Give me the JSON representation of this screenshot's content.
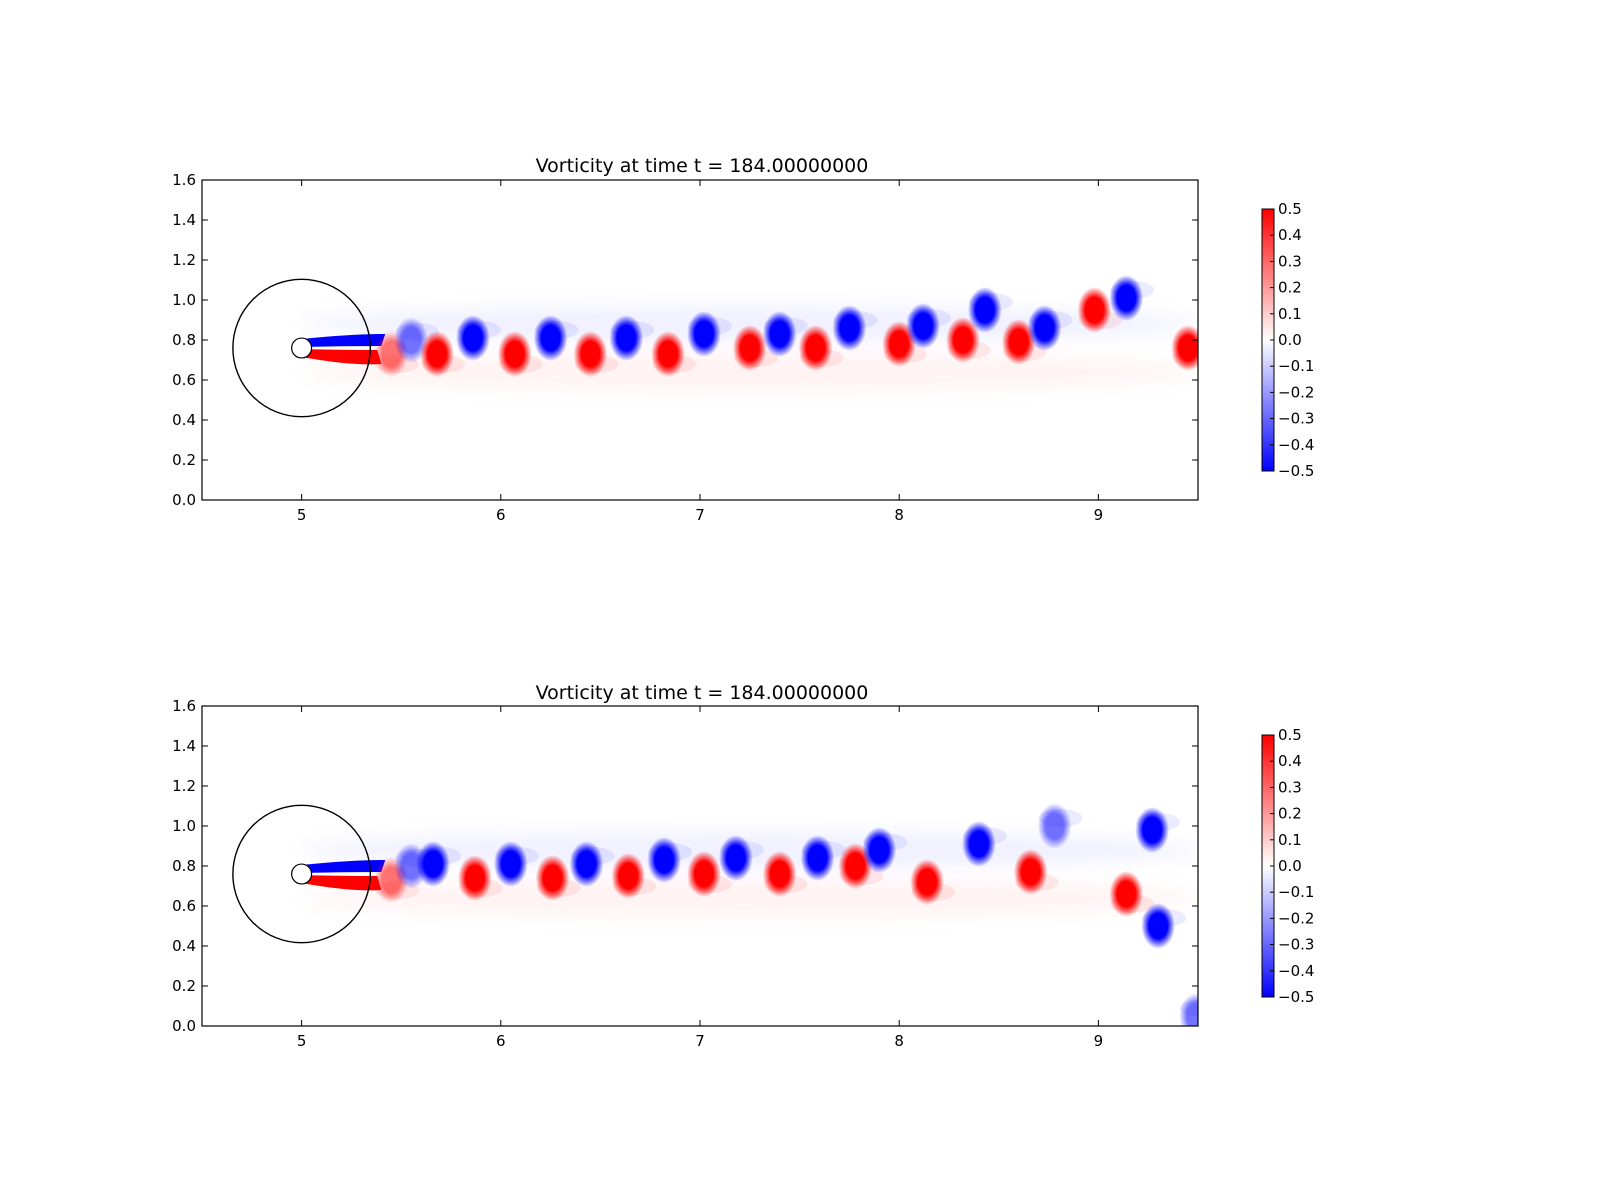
{
  "chart_data": [
    {
      "type": "heatmap",
      "title": "Vorticity at time t =   184.00000000",
      "xlim": [
        4.5,
        9.5
      ],
      "ylim": [
        0.0,
        1.6
      ],
      "xticks": [
        "5",
        "6",
        "7",
        "8",
        "9"
      ],
      "yticks": [
        "0.0",
        "0.2",
        "0.4",
        "0.6",
        "0.8",
        "1.0",
        "1.2",
        "1.4",
        "1.6"
      ],
      "colorbar": {
        "min": -0.5,
        "max": 0.5,
        "ticks": [
          "0.5",
          "0.4",
          "0.3",
          "0.2",
          "0.1",
          "0.0",
          "−0.1",
          "−0.2",
          "−0.3",
          "−0.4",
          "−0.5"
        ],
        "low_color": "#0000ff",
        "mid_color": "#ffffff",
        "high_color": "#ff0000"
      },
      "cylinder": {
        "cx": 5.0,
        "cy": 0.76,
        "r": 0.05
      },
      "domain_circle": {
        "cx": 5.0,
        "cy": 0.76,
        "r": 0.345
      },
      "vortices": [
        {
          "x": 5.45,
          "y": 0.73,
          "w": 0.3
        },
        {
          "x": 5.55,
          "y": 0.8,
          "w": -0.3
        },
        {
          "x": 5.68,
          "y": 0.73,
          "w": 0.5
        },
        {
          "x": 5.86,
          "y": 0.81,
          "w": -0.5
        },
        {
          "x": 6.07,
          "y": 0.73,
          "w": 0.5
        },
        {
          "x": 6.25,
          "y": 0.81,
          "w": -0.5
        },
        {
          "x": 6.45,
          "y": 0.73,
          "w": 0.5
        },
        {
          "x": 6.63,
          "y": 0.81,
          "w": -0.5
        },
        {
          "x": 6.84,
          "y": 0.73,
          "w": 0.5
        },
        {
          "x": 7.02,
          "y": 0.83,
          "w": -0.5
        },
        {
          "x": 7.25,
          "y": 0.76,
          "w": 0.5
        },
        {
          "x": 7.4,
          "y": 0.83,
          "w": -0.5
        },
        {
          "x": 7.58,
          "y": 0.76,
          "w": 0.5
        },
        {
          "x": 7.75,
          "y": 0.86,
          "w": -0.5
        },
        {
          "x": 8.0,
          "y": 0.78,
          "w": 0.5
        },
        {
          "x": 8.12,
          "y": 0.87,
          "w": -0.5
        },
        {
          "x": 8.32,
          "y": 0.8,
          "w": 0.5
        },
        {
          "x": 8.43,
          "y": 0.95,
          "w": -0.5
        },
        {
          "x": 8.6,
          "y": 0.79,
          "w": 0.5
        },
        {
          "x": 8.73,
          "y": 0.86,
          "w": -0.5
        },
        {
          "x": 8.98,
          "y": 0.95,
          "w": 0.5
        },
        {
          "x": 9.14,
          "y": 1.01,
          "w": -0.5
        },
        {
          "x": 9.45,
          "y": 0.76,
          "w": 0.5
        }
      ]
    },
    {
      "type": "heatmap",
      "title": "Vorticity at time t =   184.00000000",
      "xlim": [
        4.5,
        9.5
      ],
      "ylim": [
        0.0,
        1.6
      ],
      "xticks": [
        "5",
        "6",
        "7",
        "8",
        "9"
      ],
      "yticks": [
        "0.0",
        "0.2",
        "0.4",
        "0.6",
        "0.8",
        "1.0",
        "1.2",
        "1.4",
        "1.6"
      ],
      "colorbar": {
        "min": -0.5,
        "max": 0.5,
        "ticks": [
          "0.5",
          "0.4",
          "0.3",
          "0.2",
          "0.1",
          "0.0",
          "−0.1",
          "−0.2",
          "−0.3",
          "−0.4",
          "−0.5"
        ],
        "low_color": "#0000ff",
        "mid_color": "#ffffff",
        "high_color": "#ff0000"
      },
      "cylinder": {
        "cx": 5.0,
        "cy": 0.76,
        "r": 0.05
      },
      "domain_circle": {
        "cx": 5.0,
        "cy": 0.76,
        "r": 0.345
      },
      "vortices": [
        {
          "x": 5.45,
          "y": 0.73,
          "w": 0.3
        },
        {
          "x": 5.55,
          "y": 0.8,
          "w": -0.3
        },
        {
          "x": 5.66,
          "y": 0.81,
          "w": -0.5
        },
        {
          "x": 5.87,
          "y": 0.74,
          "w": 0.5
        },
        {
          "x": 6.05,
          "y": 0.81,
          "w": -0.5
        },
        {
          "x": 6.26,
          "y": 0.74,
          "w": 0.5
        },
        {
          "x": 6.43,
          "y": 0.81,
          "w": -0.5
        },
        {
          "x": 6.64,
          "y": 0.75,
          "w": 0.5
        },
        {
          "x": 6.82,
          "y": 0.83,
          "w": -0.5
        },
        {
          "x": 7.02,
          "y": 0.76,
          "w": 0.5
        },
        {
          "x": 7.18,
          "y": 0.84,
          "w": -0.5
        },
        {
          "x": 7.4,
          "y": 0.76,
          "w": 0.5
        },
        {
          "x": 7.59,
          "y": 0.84,
          "w": -0.5
        },
        {
          "x": 7.78,
          "y": 0.8,
          "w": 0.5
        },
        {
          "x": 7.9,
          "y": 0.88,
          "w": -0.5
        },
        {
          "x": 8.14,
          "y": 0.72,
          "w": 0.5
        },
        {
          "x": 8.4,
          "y": 0.91,
          "w": -0.5
        },
        {
          "x": 8.66,
          "y": 0.77,
          "w": 0.5
        },
        {
          "x": 8.78,
          "y": 1.0,
          "w": -0.3
        },
        {
          "x": 9.14,
          "y": 0.66,
          "w": 0.5
        },
        {
          "x": 9.27,
          "y": 0.98,
          "w": -0.5
        },
        {
          "x": 9.3,
          "y": 0.5,
          "w": -0.5
        },
        {
          "x": 9.49,
          "y": 0.05,
          "w": -0.4
        }
      ]
    }
  ]
}
